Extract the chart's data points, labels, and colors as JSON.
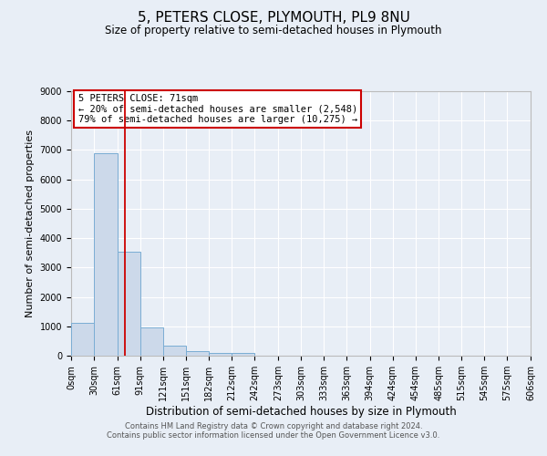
{
  "title": "5, PETERS CLOSE, PLYMOUTH, PL9 8NU",
  "subtitle": "Size of property relative to semi-detached houses in Plymouth",
  "xlabel": "Distribution of semi-detached houses by size in Plymouth",
  "ylabel": "Number of semi-detached properties",
  "bar_color": "#ccd9ea",
  "bar_edge_color": "#7aadd4",
  "bin_edges": [
    0,
    30,
    61,
    91,
    121,
    151,
    182,
    212,
    242,
    273,
    303,
    333,
    363,
    394,
    424,
    454,
    485,
    515,
    545,
    575,
    606
  ],
  "bar_heights": [
    1130,
    6880,
    3550,
    970,
    340,
    140,
    90,
    80,
    0,
    0,
    0,
    0,
    0,
    0,
    0,
    0,
    0,
    0,
    0
  ],
  "tick_labels": [
    "0sqm",
    "30sqm",
    "61sqm",
    "91sqm",
    "121sqm",
    "151sqm",
    "182sqm",
    "212sqm",
    "242sqm",
    "273sqm",
    "303sqm",
    "333sqm",
    "363sqm",
    "394sqm",
    "424sqm",
    "454sqm",
    "485sqm",
    "515sqm",
    "545sqm",
    "575sqm",
    "606sqm"
  ],
  "ylim": [
    0,
    9000
  ],
  "yticks": [
    0,
    1000,
    2000,
    3000,
    4000,
    5000,
    6000,
    7000,
    8000,
    9000
  ],
  "property_line_x": 71,
  "property_line_color": "#cc0000",
  "annotation_title": "5 PETERS CLOSE: 71sqm",
  "annotation_line1": "← 20% of semi-detached houses are smaller (2,548)",
  "annotation_line2": "79% of semi-detached houses are larger (10,275) →",
  "annotation_box_color": "#ffffff",
  "annotation_box_edge": "#cc0000",
  "footer1": "Contains HM Land Registry data © Crown copyright and database right 2024.",
  "footer2": "Contains public sector information licensed under the Open Government Licence v3.0.",
  "background_color": "#e8eef6",
  "plot_bg_color": "#e8eef6",
  "grid_color": "#ffffff",
  "title_fontsize": 11,
  "subtitle_fontsize": 8.5,
  "xlabel_fontsize": 8.5,
  "ylabel_fontsize": 8,
  "tick_fontsize": 7,
  "annotation_fontsize": 7.5,
  "footer_fontsize": 6
}
